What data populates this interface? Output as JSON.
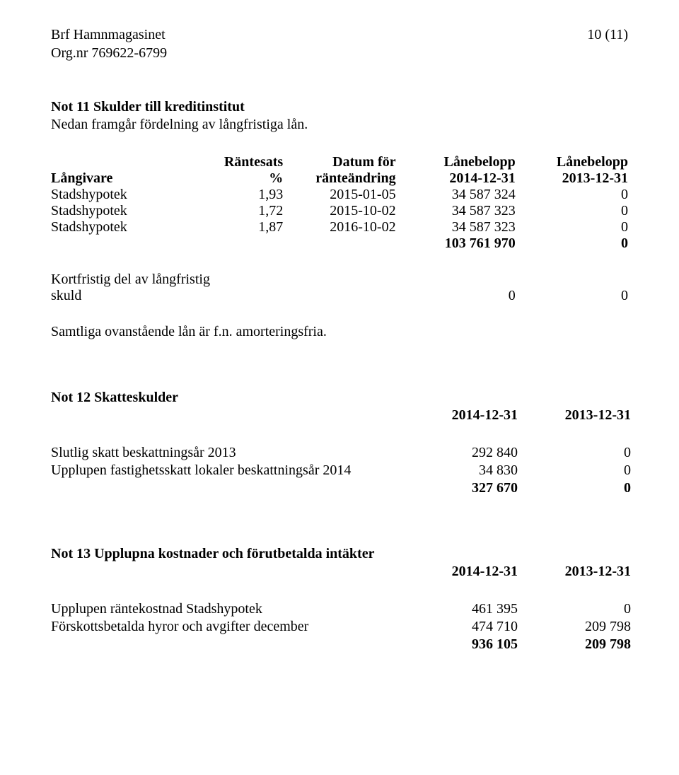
{
  "header": {
    "org_name": "Brf Hamnmagasinet",
    "org_nr": "Org.nr 769622-6799",
    "page_num": "10 (11)"
  },
  "not11": {
    "title": "Not 11 Skulder till kreditinstitut",
    "subline": "Nedan framgår fördelning av långfristiga lån.",
    "head_top": {
      "rate": "Räntesats",
      "date": "Datum för",
      "amt1": "Lånebelopp",
      "amt2": "Lånebelopp"
    },
    "head_bot": {
      "lender": "Långivare",
      "rate": "%",
      "date": "ränteändring",
      "amt1": "2014-12-31",
      "amt2": "2013-12-31"
    },
    "rows": [
      {
        "lender": "Stadshypotek",
        "rate": "1,93",
        "date": "2015-01-05",
        "amt1": "34 587 324",
        "amt2": "0"
      },
      {
        "lender": "Stadshypotek",
        "rate": "1,72",
        "date": "2015-10-02",
        "amt1": "34 587 323",
        "amt2": "0"
      },
      {
        "lender": "Stadshypotek",
        "rate": "1,87",
        "date": "2016-10-02",
        "amt1": "34 587 323",
        "amt2": "0"
      }
    ],
    "total": {
      "amt1": "103 761 970",
      "amt2": "0"
    },
    "kf": {
      "label_line1": "Kortfristig del av långfristig",
      "label_line2": "skuld",
      "v1": "0",
      "v2": "0"
    },
    "amort": "Samtliga ovanstående lån är f.n. amorteringsfria."
  },
  "not12": {
    "title": "Not 12 Skatteskulder",
    "col1": "2014-12-31",
    "col2": "2013-12-31",
    "rows": [
      {
        "lbl": "Slutlig skatt beskattningsår 2013",
        "c1": "292 840",
        "c2": "0"
      },
      {
        "lbl": "Upplupen fastighetsskatt lokaler beskattningsår 2014",
        "c1": "34 830",
        "c2": "0"
      }
    ],
    "total": {
      "c1": "327 670",
      "c2": "0"
    }
  },
  "not13": {
    "title": "Not 13 Upplupna kostnader och förutbetalda intäkter",
    "col1": "2014-12-31",
    "col2": "2013-12-31",
    "rows": [
      {
        "lbl": "Upplupen räntekostnad Stadshypotek",
        "c1": "461 395",
        "c2": "0"
      },
      {
        "lbl": "Förskottsbetalda hyror och avgifter december",
        "c1": "474 710",
        "c2": "209 798"
      }
    ],
    "total": {
      "c1": "936 105",
      "c2": "209 798"
    }
  }
}
